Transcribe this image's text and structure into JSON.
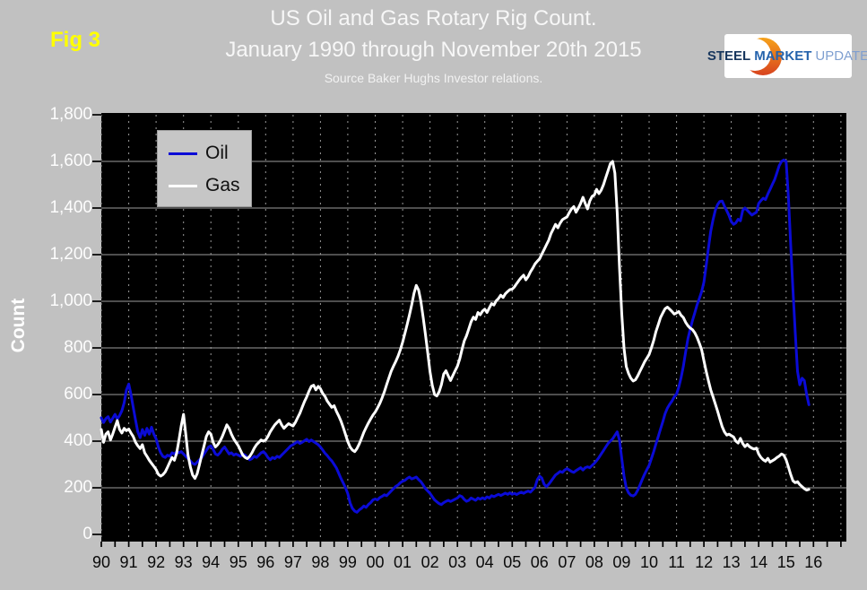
{
  "figure_label": "Fig 3",
  "title_line1": "US Oil and Gas Rotary Rig Count.",
  "title_line2": "January 1990 through November 20th 2015",
  "source_line": "Source Baker Hughs Investor relations.",
  "logo": {
    "steel": "STEEL",
    "market": "MARKET",
    "update": "UPDATE"
  },
  "chart_data": {
    "type": "line",
    "title": "US Oil and Gas Rotary Rig Count.",
    "subtitle": "January 1990 through November 20th 2015",
    "source": "Source Baker Hughs Investor relations.",
    "xlabel": "",
    "ylabel": "Count",
    "ylim": [
      0,
      1800
    ],
    "y_tick_step": 200,
    "grid": {
      "horizontal": "solid",
      "vertical": "dashed"
    },
    "legend_position": "top-left",
    "plot_background": "#000000",
    "x_start_year": 1990,
    "x_frequency": "monthly",
    "x_end": "November 2015",
    "x_tick_labels": [
      "90",
      "91",
      "92",
      "93",
      "94",
      "95",
      "96",
      "97",
      "98",
      "99",
      "00",
      "01",
      "02",
      "03",
      "04",
      "05",
      "06",
      "07",
      "08",
      "09",
      "10",
      "11",
      "12",
      "13",
      "14",
      "15",
      "16"
    ],
    "y_tick_labels": [
      "0",
      "200",
      "400",
      "600",
      "800",
      "1,000",
      "1,200",
      "1,400",
      "1,600",
      "1,800"
    ],
    "series": [
      {
        "name": "Oil",
        "color": "#0b0bd6",
        "values": [
          500,
          480,
          497,
          505,
          482,
          498,
          515,
          495,
          510,
          530,
          565,
          620,
          645,
          600,
          545,
          490,
          440,
          415,
          450,
          425,
          455,
          430,
          460,
          430,
          410,
          375,
          350,
          335,
          330,
          340,
          335,
          350,
          345,
          355,
          350,
          355,
          345,
          335,
          325,
          315,
          305,
          300,
          310,
          320,
          330,
          345,
          360,
          375,
          380,
          365,
          345,
          340,
          350,
          365,
          375,
          360,
          345,
          350,
          340,
          345,
          340,
          335,
          345,
          340,
          330,
          320,
          325,
          335,
          330,
          340,
          350,
          355,
          345,
          330,
          320,
          330,
          325,
          335,
          330,
          340,
          350,
          360,
          370,
          380,
          385,
          392,
          398,
          390,
          395,
          402,
          408,
          398,
          405,
          398,
          392,
          385,
          375,
          362,
          348,
          338,
          325,
          315,
          300,
          285,
          262,
          240,
          220,
          200,
          175,
          135,
          112,
          100,
          95,
          105,
          112,
          122,
          116,
          128,
          136,
          148,
          152,
          148,
          158,
          163,
          170,
          166,
          176,
          186,
          196,
          206,
          212,
          222,
          228,
          232,
          240,
          246,
          238,
          242,
          246,
          235,
          226,
          212,
          197,
          186,
          176,
          162,
          148,
          140,
          132,
          128,
          136,
          142,
          146,
          141,
          146,
          151,
          156,
          166,
          162,
          150,
          142,
          146,
          156,
          151,
          146,
          156,
          151,
          157,
          152,
          161,
          156,
          166,
          162,
          167,
          172,
          167,
          172,
          177,
          172,
          178,
          172,
          176,
          171,
          177,
          181,
          176,
          182,
          186,
          181,
          192,
          202,
          235,
          250,
          242,
          215,
          205,
          215,
          228,
          242,
          255,
          262,
          270,
          266,
          276,
          282,
          276,
          270,
          266,
          274,
          280,
          286,
          276,
          286,
          290,
          286,
          296,
          305,
          316,
          330,
          345,
          360,
          375,
          390,
          400,
          410,
          425,
          440,
          405,
          325,
          250,
          200,
          178,
          168,
          165,
          172,
          190,
          212,
          236,
          258,
          278,
          296,
          325,
          355,
          388,
          420,
          452,
          484,
          518,
          542,
          558,
          572,
          590,
          602,
          632,
          672,
          722,
          782,
          840,
          880,
          918,
          950,
          985,
          1012,
          1042,
          1082,
          1152,
          1230,
          1300,
          1350,
          1390,
          1415,
          1428,
          1430,
          1408,
          1388,
          1368,
          1342,
          1330,
          1336,
          1352,
          1345,
          1390,
          1400,
          1390,
          1380,
          1370,
          1376,
          1382,
          1420,
          1432,
          1442,
          1436,
          1460,
          1480,
          1502,
          1522,
          1552,
          1582,
          1600,
          1606,
          1600,
          1450,
          1250,
          1050,
          870,
          700,
          642,
          670,
          660,
          600,
          556
        ]
      },
      {
        "name": "Gas",
        "color": "#ffffff",
        "values": [
          450,
          395,
          430,
          440,
          405,
          430,
          460,
          488,
          450,
          435,
          455,
          445,
          452,
          435,
          420,
          395,
          380,
          368,
          385,
          350,
          335,
          318,
          305,
          292,
          278,
          258,
          250,
          256,
          268,
          288,
          310,
          330,
          318,
          348,
          405,
          465,
          515,
          430,
          340,
          290,
          255,
          240,
          260,
          300,
          340,
          380,
          420,
          440,
          430,
          395,
          375,
          385,
          400,
          420,
          445,
          470,
          455,
          430,
          410,
          395,
          380,
          360,
          340,
          330,
          325,
          335,
          350,
          370,
          385,
          395,
          405,
          400,
          405,
          420,
          440,
          455,
          470,
          480,
          490,
          470,
          455,
          465,
          475,
          470,
          465,
          480,
          500,
          520,
          545,
          570,
          590,
          615,
          635,
          640,
          620,
          635,
          625,
          605,
          592,
          572,
          558,
          545,
          552,
          528,
          508,
          486,
          458,
          428,
          398,
          375,
          362,
          355,
          368,
          388,
          412,
          438,
          458,
          478,
          495,
          512,
          525,
          542,
          562,
          585,
          612,
          642,
          672,
          700,
          722,
          742,
          765,
          792,
          825,
          862,
          900,
          942,
          985,
          1035,
          1068,
          1048,
          1000,
          930,
          858,
          778,
          698,
          640,
          600,
          594,
          612,
          642,
          688,
          702,
          680,
          660,
          682,
          702,
          722,
          752,
          792,
          830,
          852,
          882,
          912,
          932,
          922,
          952,
          942,
          958,
          966,
          952,
          972,
          990,
          984,
          1002,
          1012,
          1026,
          1016,
          1032,
          1042,
          1050,
          1052,
          1062,
          1076,
          1090,
          1102,
          1112,
          1092,
          1106,
          1126,
          1142,
          1160,
          1172,
          1182,
          1202,
          1222,
          1242,
          1262,
          1290,
          1310,
          1330,
          1315,
          1335,
          1350,
          1356,
          1362,
          1380,
          1396,
          1406,
          1382,
          1400,
          1420,
          1446,
          1420,
          1396,
          1430,
          1450,
          1456,
          1480,
          1462,
          1476,
          1500,
          1530,
          1560,
          1590,
          1600,
          1550,
          1380,
          1150,
          945,
          798,
          720,
          690,
          670,
          658,
          663,
          680,
          700,
          720,
          740,
          756,
          772,
          800,
          832,
          870,
          900,
          930,
          950,
          968,
          975,
          966,
          956,
          945,
          950,
          956,
          940,
          930,
          910,
          895,
          885,
          878,
          865,
          845,
          820,
          792,
          745,
          700,
          658,
          620,
          590,
          560,
          528,
          495,
          462,
          440,
          426,
          430,
          424,
          418,
          400,
          392,
          412,
          390,
          376,
          386,
          376,
          370,
          366,
          370,
          345,
          330,
          320,
          314,
          326,
          310,
          316,
          322,
          330,
          336,
          345,
          340,
          320,
          290,
          258,
          230,
          222,
          226,
          214,
          205,
          196,
          190,
          193
        ]
      }
    ]
  }
}
